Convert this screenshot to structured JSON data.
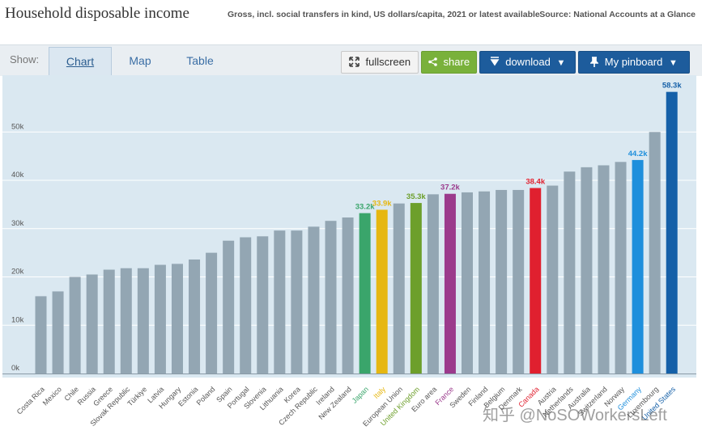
{
  "header": {
    "title": "Household disposable income",
    "subtitle": "Gross, incl. social transfers in kind, US dollars/capita, 2021 or latest available",
    "source": "Source: National Accounts at a Glance"
  },
  "toolbar": {
    "show_label": "Show:",
    "tabs": [
      {
        "label": "Chart",
        "active": true
      },
      {
        "label": "Map",
        "active": false
      },
      {
        "label": "Table",
        "active": false
      }
    ],
    "fullscreen_label": "fullscreen",
    "fullscreen_icon": "expand-icon",
    "share_label": "share",
    "share_icon": "share-icon",
    "download_label": "download",
    "download_icon": "download-arrow-icon",
    "pinboard_label": "My pinboard",
    "pinboard_icon": "pin-icon"
  },
  "watermark": "知乎 @NoSOWorkersLeft",
  "chart_data": {
    "type": "bar",
    "ylim": [
      0,
      60000
    ],
    "yticks": [
      {
        "value": 0,
        "label": "0k"
      },
      {
        "value": 10000,
        "label": "10k"
      },
      {
        "value": 20000,
        "label": "20k"
      },
      {
        "value": 30000,
        "label": "30k"
      },
      {
        "value": 40000,
        "label": "40k"
      },
      {
        "value": 50000,
        "label": "50k"
      }
    ],
    "grid": true,
    "default_color": "#93a6b3",
    "categories": [
      {
        "name": "Costa Rica",
        "value": 16000
      },
      {
        "name": "Mexico",
        "value": 17000
      },
      {
        "name": "Chile",
        "value": 20000
      },
      {
        "name": "Russia",
        "value": 20500
      },
      {
        "name": "Greece",
        "value": 21500
      },
      {
        "name": "Slovak Republic",
        "value": 21800
      },
      {
        "name": "Türkiye",
        "value": 21800
      },
      {
        "name": "Latvia",
        "value": 22500
      },
      {
        "name": "Hungary",
        "value": 22700
      },
      {
        "name": "Estonia",
        "value": 23600
      },
      {
        "name": "Poland",
        "value": 25000
      },
      {
        "name": "Spain",
        "value": 27500
      },
      {
        "name": "Portugal",
        "value": 28200
      },
      {
        "name": "Slovenia",
        "value": 28400
      },
      {
        "name": "Lithuania",
        "value": 29600
      },
      {
        "name": "Korea",
        "value": 29600
      },
      {
        "name": "Czech Republic",
        "value": 30400
      },
      {
        "name": "Ireland",
        "value": 31600
      },
      {
        "name": "New Zealand",
        "value": 32300
      },
      {
        "name": "Japan",
        "value": 33200,
        "label": "33.2k",
        "color": "#3aa56b"
      },
      {
        "name": "Italy",
        "value": 33900,
        "label": "33.9k",
        "color": "#e6b711"
      },
      {
        "name": "European Union",
        "value": 35200
      },
      {
        "name": "United Kingdom",
        "value": 35300,
        "label": "35.3k",
        "color": "#6d9f2b"
      },
      {
        "name": "Euro area",
        "value": 37100
      },
      {
        "name": "France",
        "value": 37200,
        "label": "37.2k",
        "color": "#9b3a8c"
      },
      {
        "name": "Sweden",
        "value": 37500
      },
      {
        "name": "Finland",
        "value": 37700
      },
      {
        "name": "Belgium",
        "value": 38000
      },
      {
        "name": "Denmark",
        "value": 38000
      },
      {
        "name": "Canada",
        "value": 38400,
        "label": "38.4k",
        "color": "#e0202f"
      },
      {
        "name": "Austria",
        "value": 38900
      },
      {
        "name": "Netherlands",
        "value": 41800
      },
      {
        "name": "Australia",
        "value": 42700
      },
      {
        "name": "Switzerland",
        "value": 43100
      },
      {
        "name": "Norway",
        "value": 43800
      },
      {
        "name": "Germany",
        "value": 44200,
        "label": "44.2k",
        "color": "#1e8fdc"
      },
      {
        "name": "Luxembourg",
        "value": 50000
      },
      {
        "name": "United States",
        "value": 58300,
        "label": "58.3k",
        "color": "#1560a8"
      }
    ]
  }
}
